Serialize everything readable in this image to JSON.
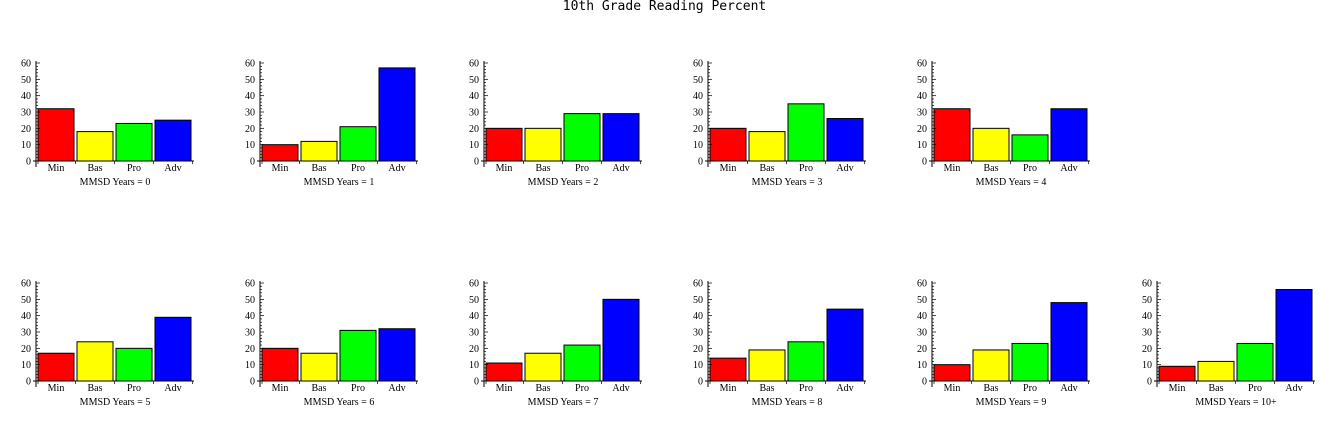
{
  "title": "10th Grade Reading Percent",
  "colors": {
    "Min": "#ff0000",
    "Bas": "#ffff00",
    "Pro": "#00ff00",
    "Adv": "#0000ff"
  },
  "chart_data": [
    {
      "type": "bar",
      "categories": [
        "Min",
        "Bas",
        "Pro",
        "Adv"
      ],
      "values": [
        32,
        18,
        23,
        25
      ],
      "xlabel": "MMSD Years = 0",
      "ylim": [
        0,
        60
      ],
      "yticks": [
        0,
        10,
        20,
        30,
        40,
        50,
        60
      ]
    },
    {
      "type": "bar",
      "categories": [
        "Min",
        "Bas",
        "Pro",
        "Adv"
      ],
      "values": [
        10,
        12,
        21,
        57
      ],
      "xlabel": "MMSD Years = 1",
      "ylim": [
        0,
        60
      ],
      "yticks": [
        0,
        10,
        20,
        30,
        40,
        50,
        60
      ]
    },
    {
      "type": "bar",
      "categories": [
        "Min",
        "Bas",
        "Pro",
        "Adv"
      ],
      "values": [
        20,
        20,
        29,
        29
      ],
      "xlabel": "MMSD Years = 2",
      "ylim": [
        0,
        60
      ],
      "yticks": [
        0,
        10,
        20,
        30,
        40,
        50,
        60
      ]
    },
    {
      "type": "bar",
      "categories": [
        "Min",
        "Bas",
        "Pro",
        "Adv"
      ],
      "values": [
        20,
        18,
        35,
        26
      ],
      "xlabel": "MMSD Years = 3",
      "ylim": [
        0,
        60
      ],
      "yticks": [
        0,
        10,
        20,
        30,
        40,
        50,
        60
      ]
    },
    {
      "type": "bar",
      "categories": [
        "Min",
        "Bas",
        "Pro",
        "Adv"
      ],
      "values": [
        32,
        20,
        16,
        32
      ],
      "xlabel": "MMSD Years = 4",
      "ylim": [
        0,
        60
      ],
      "yticks": [
        0,
        10,
        20,
        30,
        40,
        50,
        60
      ]
    },
    {
      "type": "bar",
      "categories": [
        "Min",
        "Bas",
        "Pro",
        "Adv"
      ],
      "values": [
        17,
        24,
        20,
        39
      ],
      "xlabel": "MMSD Years = 5",
      "ylim": [
        0,
        60
      ],
      "yticks": [
        0,
        10,
        20,
        30,
        40,
        50,
        60
      ]
    },
    {
      "type": "bar",
      "categories": [
        "Min",
        "Bas",
        "Pro",
        "Adv"
      ],
      "values": [
        20,
        17,
        31,
        32
      ],
      "xlabel": "MMSD Years = 6",
      "ylim": [
        0,
        60
      ],
      "yticks": [
        0,
        10,
        20,
        30,
        40,
        50,
        60
      ]
    },
    {
      "type": "bar",
      "categories": [
        "Min",
        "Bas",
        "Pro",
        "Adv"
      ],
      "values": [
        11,
        17,
        22,
        50
      ],
      "xlabel": "MMSD Years = 7",
      "ylim": [
        0,
        60
      ],
      "yticks": [
        0,
        10,
        20,
        30,
        40,
        50,
        60
      ]
    },
    {
      "type": "bar",
      "categories": [
        "Min",
        "Bas",
        "Pro",
        "Adv"
      ],
      "values": [
        14,
        19,
        24,
        44
      ],
      "xlabel": "MMSD Years = 8",
      "ylim": [
        0,
        60
      ],
      "yticks": [
        0,
        10,
        20,
        30,
        40,
        50,
        60
      ]
    },
    {
      "type": "bar",
      "categories": [
        "Min",
        "Bas",
        "Pro",
        "Adv"
      ],
      "values": [
        10,
        19,
        23,
        48
      ],
      "xlabel": "MMSD Years = 9",
      "ylim": [
        0,
        60
      ],
      "yticks": [
        0,
        10,
        20,
        30,
        40,
        50,
        60
      ]
    },
    {
      "type": "bar",
      "categories": [
        "Min",
        "Bas",
        "Pro",
        "Adv"
      ],
      "values": [
        9,
        12,
        23,
        56
      ],
      "xlabel": "MMSD Years = 10+",
      "ylim": [
        0,
        60
      ],
      "yticks": [
        0,
        10,
        20,
        30,
        40,
        50,
        60
      ]
    }
  ]
}
